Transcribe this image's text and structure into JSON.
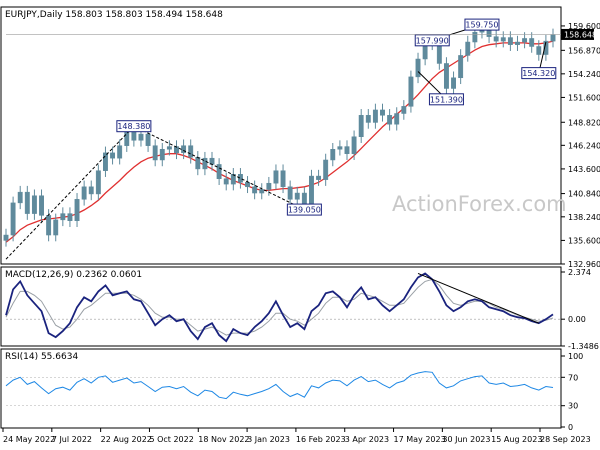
{
  "chart_data": [
    {
      "type": "candlestick",
      "header": "EURJPY,Daily  158.803 158.803 158.494 158.648",
      "watermark": "ActionForex.com",
      "y_ticks": [
        "159.600",
        "156.870",
        "154.240",
        "151.600",
        "148.820",
        "146.240",
        "143.600",
        "140.840",
        "138.240",
        "135.600",
        "132.960"
      ],
      "ylim": [
        132.96,
        160.6
      ],
      "last_price": "158.648",
      "series": [
        {
          "name": "EURJPY close",
          "color": "#5f8a9c",
          "values": [
            136.2,
            139.8,
            141.0,
            138.6,
            140.6,
            138.4,
            136.2,
            137.9,
            138.6,
            137.8,
            140.2,
            141.6,
            140.8,
            143.4,
            145.4,
            144.8,
            146.2,
            147.9,
            146.8,
            147.5,
            146.2,
            144.6,
            145.8,
            146.1,
            145.4,
            146.2,
            144.9,
            143.6,
            144.8,
            144.1,
            142.5,
            141.9,
            143.0,
            142.1,
            141.6,
            140.9,
            141.3,
            142.0,
            143.4,
            141.6,
            140.2,
            140.9,
            139.4,
            142.8,
            142.4,
            144.6,
            145.8,
            146.1,
            145.3,
            147.2,
            149.6,
            148.8,
            150.2,
            149.6,
            148.6,
            149.8,
            150.6,
            153.9,
            155.9,
            157.6,
            157.9,
            155.4,
            152.6,
            153.8,
            156.3,
            157.8,
            158.9,
            159.5,
            158.4,
            157.9,
            158.3,
            157.5,
            157.8,
            158.2,
            157.3,
            156.4,
            157.9,
            158.6
          ]
        },
        {
          "name": "Moving average",
          "color": "#e03030",
          "values": [
            135.4,
            136.0,
            136.8,
            137.3,
            137.6,
            137.9,
            138.0,
            138.1,
            138.2,
            138.3,
            138.6,
            139.0,
            139.5,
            140.1,
            140.9,
            141.6,
            142.3,
            143.1,
            143.8,
            144.4,
            144.8,
            145.0,
            145.2,
            145.3,
            145.3,
            145.1,
            144.8,
            144.4,
            144.0,
            143.6,
            143.1,
            142.7,
            142.3,
            142.0,
            141.7,
            141.4,
            141.2,
            141.2,
            141.3,
            141.4,
            141.4,
            141.5,
            141.6,
            141.8,
            142.1,
            142.6,
            143.2,
            143.8,
            144.4,
            145.1,
            145.9,
            146.7,
            147.5,
            148.3,
            149.0,
            149.7,
            150.4,
            151.1,
            151.9,
            152.8,
            153.7,
            154.4,
            154.9,
            155.4,
            155.9,
            156.4,
            156.9,
            157.3,
            157.5,
            157.6,
            157.7,
            157.7,
            157.7,
            157.7,
            157.6,
            157.6,
            157.7,
            157.9
          ]
        }
      ],
      "price_labels": [
        {
          "text": "148.380",
          "value": 148.38,
          "index": 18
        },
        {
          "text": "139.050",
          "value": 139.05,
          "index": 42
        },
        {
          "text": "157.990",
          "value": 157.99,
          "index": 60
        },
        {
          "text": "151.390",
          "value": 151.39,
          "index": 62
        },
        {
          "text": "159.750",
          "value": 159.75,
          "index": 67
        },
        {
          "text": "154.320",
          "value": 154.32,
          "index": 75
        }
      ],
      "trend_lines": [
        {
          "from": [
            0,
            133.5
          ],
          "to": [
            18,
            148.38
          ],
          "style": "dashed"
        },
        {
          "from": [
            18,
            148.38
          ],
          "to": [
            42,
            139.05
          ],
          "style": "dashed"
        },
        {
          "from": [
            58,
            154.5
          ],
          "to": [
            62,
            151.39
          ],
          "style": "solid"
        },
        {
          "from": [
            60,
            157.99
          ],
          "to": [
            67,
            159.75
          ],
          "style": "solid"
        },
        {
          "from": [
            75,
            154.32
          ],
          "to": [
            76,
            157.8
          ],
          "style": "solid"
        }
      ]
    },
    {
      "type": "line",
      "title": "MACD(12,26,9) 0.2362 0.0601",
      "y_ticks": [
        "2.374",
        "0.00",
        "-1.3486"
      ],
      "ylim": [
        -1.3486,
        2.374
      ],
      "series": [
        {
          "name": "MACD",
          "color": "#1a237e",
          "values": [
            0.2,
            1.5,
            1.9,
            1.2,
            0.8,
            0.4,
            -0.7,
            -0.9,
            -0.6,
            -0.2,
            0.6,
            1.1,
            0.9,
            1.4,
            1.7,
            1.2,
            1.3,
            1.4,
            1.0,
            0.9,
            0.3,
            -0.3,
            0.0,
            0.2,
            -0.1,
            0.0,
            -0.6,
            -1.0,
            -0.4,
            -0.2,
            -0.8,
            -1.1,
            -0.5,
            -0.7,
            -0.8,
            -0.4,
            -0.1,
            0.3,
            0.9,
            0.2,
            -0.4,
            -0.2,
            -0.5,
            0.4,
            0.7,
            1.3,
            1.4,
            1.1,
            0.6,
            1.2,
            1.6,
            1.0,
            1.1,
            0.7,
            0.4,
            0.7,
            1.0,
            1.6,
            2.1,
            2.3,
            2.0,
            1.4,
            0.7,
            0.4,
            0.6,
            0.9,
            1.0,
            0.9,
            0.6,
            0.5,
            0.4,
            0.2,
            0.1,
            0.05,
            -0.1,
            -0.2,
            0.0,
            0.24
          ]
        },
        {
          "name": "Signal",
          "color": "#9aa0a6",
          "values": [
            0.1,
            0.8,
            1.4,
            1.4,
            1.2,
            0.9,
            0.3,
            -0.3,
            -0.5,
            -0.4,
            0.0,
            0.5,
            0.7,
            1.0,
            1.3,
            1.3,
            1.3,
            1.3,
            1.2,
            1.0,
            0.7,
            0.3,
            0.1,
            0.1,
            0.0,
            0.0,
            -0.3,
            -0.6,
            -0.5,
            -0.4,
            -0.6,
            -0.8,
            -0.7,
            -0.7,
            -0.7,
            -0.6,
            -0.4,
            -0.1,
            0.3,
            0.3,
            0.0,
            -0.1,
            -0.3,
            0.0,
            0.3,
            0.8,
            1.1,
            1.1,
            0.9,
            1.0,
            1.3,
            1.2,
            1.1,
            0.9,
            0.7,
            0.7,
            0.8,
            1.2,
            1.6,
            1.9,
            2.0,
            1.7,
            1.2,
            0.8,
            0.7,
            0.8,
            0.9,
            0.9,
            0.8,
            0.6,
            0.5,
            0.35,
            0.2,
            0.1,
            0.0,
            -0.1,
            -0.05,
            0.06
          ]
        }
      ],
      "trend_line": {
        "from": [
          58,
          2.3
        ],
        "to": [
          75,
          -0.2
        ]
      }
    },
    {
      "type": "line",
      "title": "RSI(14) 55.6634",
      "y_ticks": [
        "100",
        "70",
        "30",
        "0"
      ],
      "ylim": [
        0,
        100
      ],
      "series": [
        {
          "name": "RSI",
          "color": "#1e88e5",
          "values": [
            58,
            66,
            70,
            60,
            64,
            55,
            47,
            54,
            56,
            52,
            63,
            68,
            62,
            70,
            72,
            63,
            66,
            69,
            62,
            64,
            57,
            50,
            56,
            57,
            54,
            57,
            49,
            44,
            52,
            50,
            42,
            40,
            49,
            46,
            44,
            47,
            50,
            54,
            60,
            50,
            43,
            47,
            42,
            58,
            55,
            62,
            66,
            65,
            58,
            66,
            71,
            64,
            66,
            60,
            55,
            62,
            65,
            73,
            76,
            78,
            77,
            62,
            55,
            58,
            65,
            68,
            71,
            72,
            62,
            60,
            62,
            57,
            58,
            60,
            55,
            52,
            57,
            55.7
          ]
        }
      ]
    }
  ],
  "x_ticks": [
    "24 May 2022",
    "7 Jul 2022",
    "22 Aug 2022",
    "5 Oct 2022",
    "18 Nov 2022",
    "3 Jan 2023",
    "16 Feb 2023",
    "3 Apr 2023",
    "17 May 2023",
    "30 Jun 2023",
    "15 Aug 2023",
    "28 Sep 2023"
  ]
}
